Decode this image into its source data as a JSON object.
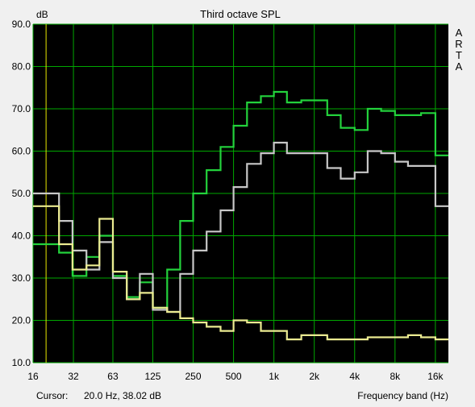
{
  "window": {
    "background": "#f0f0f0"
  },
  "chart_data": {
    "type": "line",
    "step": true,
    "title": "Third octave SPL",
    "ylabel": "dB",
    "xlabel": "Frequency band (Hz)",
    "side_label": [
      "A",
      "R",
      "T",
      "A"
    ],
    "cursor_label": "Cursor:",
    "cursor_readout": "20.0 Hz, 38.02 dB",
    "cursor_freq": 20,
    "x_scale": "log",
    "xlim": [
      16,
      20000
    ],
    "ylim": [
      10,
      90
    ],
    "y_ticks": [
      10,
      20,
      30,
      40,
      50,
      60,
      70,
      80,
      90
    ],
    "y_tick_labels": [
      "10.0",
      "20.0",
      "30.0",
      "40.0",
      "50.0",
      "60.0",
      "70.0",
      "80.0",
      "90.0"
    ],
    "x_ticks": [
      16,
      32,
      63,
      125,
      250,
      500,
      1000,
      2000,
      4000,
      8000,
      16000
    ],
    "x_tick_labels": [
      "16",
      "32",
      "63",
      "125",
      "250",
      "500",
      "1k",
      "2k",
      "4k",
      "8k",
      "16k"
    ],
    "bands": [
      16,
      20,
      25,
      31.5,
      40,
      50,
      63,
      80,
      100,
      125,
      160,
      200,
      250,
      315,
      400,
      500,
      630,
      800,
      1000,
      1250,
      1600,
      2000,
      2500,
      3150,
      4000,
      5000,
      6300,
      8000,
      10000,
      12500,
      16000,
      20000
    ],
    "grid": true,
    "colors": {
      "plot_bg": "#000000",
      "grid": "#00a800",
      "cursor": "#e6e600"
    },
    "series": [
      {
        "color": "#23d23c",
        "values": [
          38,
          38,
          36,
          30.5,
          35,
          40,
          30.5,
          25.5,
          29,
          23,
          32,
          43.5,
          50,
          55.5,
          61,
          66,
          71.5,
          73,
          74,
          71.5,
          72,
          72,
          68.5,
          65.5,
          65,
          70,
          69.5,
          68.5,
          68.5,
          69,
          59,
          59
        ]
      },
      {
        "color": "#c8c8c8",
        "values": [
          50,
          50,
          43.5,
          36.5,
          32,
          38.5,
          30,
          25,
          31,
          22.5,
          22,
          31,
          36.5,
          41,
          46,
          51.5,
          57,
          59.5,
          62,
          59.5,
          59.5,
          59.5,
          56,
          53.5,
          55,
          60,
          59.5,
          57.5,
          56.5,
          56.5,
          47,
          47
        ]
      },
      {
        "color": "#ebeb91",
        "values": [
          47,
          47,
          38,
          32,
          33,
          44,
          31.5,
          25,
          26.5,
          23,
          22,
          20.5,
          19.5,
          18.5,
          17.5,
          20,
          19.5,
          17.5,
          17.5,
          15.5,
          16.5,
          16.5,
          15.5,
          15.5,
          15.5,
          16,
          16,
          16,
          16.5,
          16,
          15.5,
          15.5
        ]
      }
    ]
  }
}
